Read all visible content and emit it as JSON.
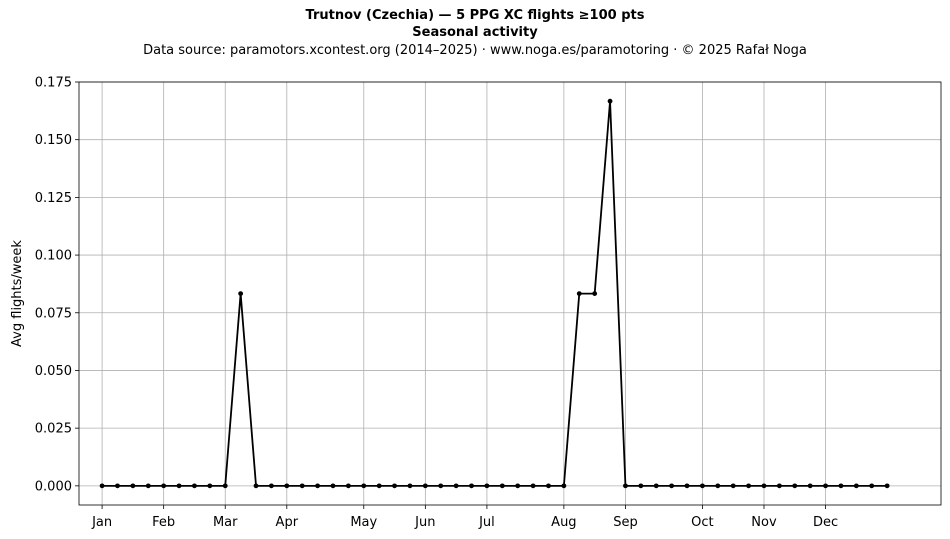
{
  "header": {
    "title": "Trutnov (Czechia)  —  5 PPG XC flights ≥100 pts",
    "subtitle": "Seasonal activity",
    "source": "Data source: paramotors.xcontest.org (2014–2025)  ·  www.noga.es/paramotoring  ·  © 2025 Rafał Noga"
  },
  "chart_data": {
    "type": "line",
    "title": "Trutnov (Czechia)  —  5 PPG XC flights ≥100 pts",
    "subtitle": "Seasonal activity",
    "xlabel": "",
    "ylabel": "Avg flights/week",
    "ylim": [
      -0.0083,
      0.175
    ],
    "xlim": [
      -1.5,
      54.5
    ],
    "grid": true,
    "color": "#000000",
    "yticks": [
      "0.000",
      "0.025",
      "0.050",
      "0.075",
      "0.100",
      "0.125",
      "0.150",
      "0.175"
    ],
    "month_ticks": [
      {
        "label": "Jan",
        "week": 0
      },
      {
        "label": "Feb",
        "week": 4
      },
      {
        "label": "Mar",
        "week": 8
      },
      {
        "label": "Apr",
        "week": 12
      },
      {
        "label": "May",
        "week": 17
      },
      {
        "label": "Jun",
        "week": 21
      },
      {
        "label": "Jul",
        "week": 25
      },
      {
        "label": "Aug",
        "week": 30
      },
      {
        "label": "Sep",
        "week": 34
      },
      {
        "label": "Oct",
        "week": 39
      },
      {
        "label": "Nov",
        "week": 43
      },
      {
        "label": "Dec",
        "week": 47
      }
    ],
    "series": [
      {
        "values": [
          0,
          0,
          0,
          0,
          0,
          0,
          0,
          0,
          0,
          0.0833,
          0,
          0,
          0,
          0,
          0,
          0,
          0,
          0,
          0,
          0,
          0,
          0,
          0,
          0,
          0,
          0,
          0,
          0,
          0,
          0,
          0,
          0.0833,
          0.0833,
          0.1667,
          0,
          0,
          0,
          0,
          0,
          0,
          0,
          0,
          0,
          0,
          0,
          0,
          0,
          0,
          0,
          0,
          0,
          0
        ]
      }
    ]
  }
}
